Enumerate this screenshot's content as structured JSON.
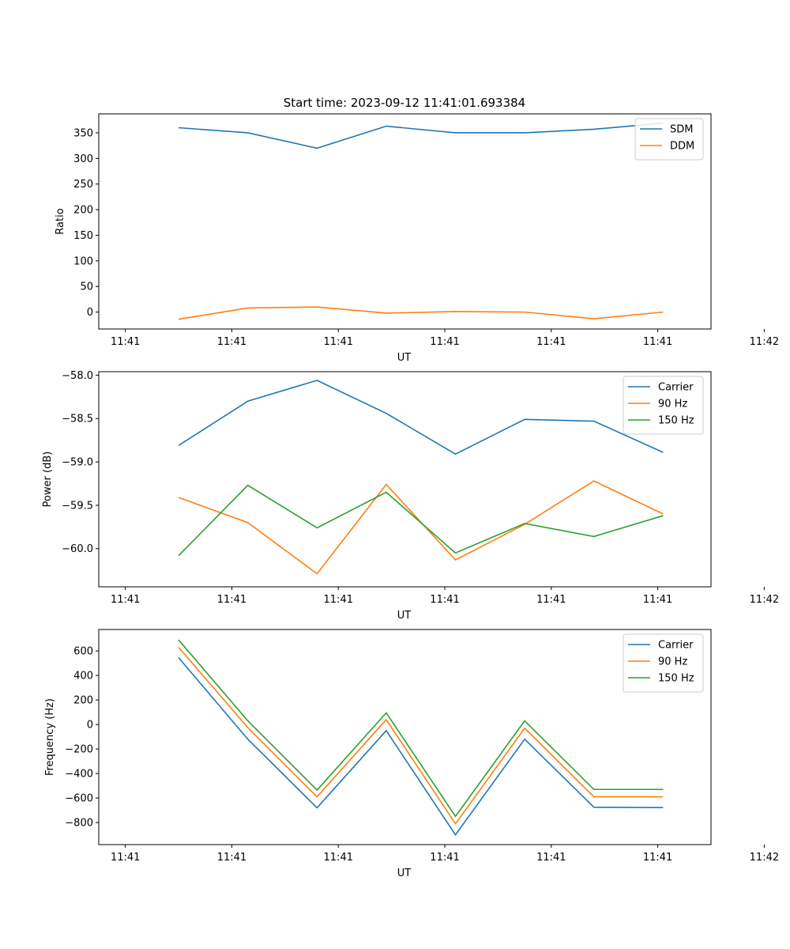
{
  "figure_title": "Start time: 2023-09-12 11:41:01.693384",
  "chart_data": [
    {
      "type": "line",
      "title": "Start time: 2023-09-12 11:41:01.693384",
      "xlabel": "UT",
      "ylabel": "Ratio",
      "xlim": [
        -0.5,
        11.0
      ],
      "ylim": [
        -33,
        387
      ],
      "xticks": [
        0,
        2,
        4,
        6,
        8,
        10,
        12
      ],
      "xtick_labels": [
        "11:41",
        "11:41",
        "11:41",
        "11:41",
        "11:41",
        "11:41",
        "11:42"
      ],
      "yticks": [
        0,
        50,
        100,
        150,
        200,
        250,
        300,
        350
      ],
      "ytick_labels": [
        "0",
        "50",
        "100",
        "150",
        "200",
        "250",
        "300",
        "350"
      ],
      "legend_position": "top-right",
      "x": [
        1,
        2.3,
        3.6,
        4.9,
        6.2,
        7.5,
        8.8,
        10.1
      ],
      "series": [
        {
          "name": "SDM",
          "color": "#1f77b4",
          "values": [
            360,
            350,
            320,
            363,
            350,
            350,
            357,
            369
          ]
        },
        {
          "name": "DDM",
          "color": "#ff7f0e",
          "values": [
            -14,
            8,
            10,
            -2,
            1,
            0,
            -13,
            0
          ]
        }
      ]
    },
    {
      "type": "line",
      "title": "",
      "xlabel": "UT",
      "ylabel": "Power (dB)",
      "xlim": [
        -0.5,
        11.0
      ],
      "ylim": [
        -60.44,
        -57.96
      ],
      "xticks": [
        0,
        2,
        4,
        6,
        8,
        10,
        12
      ],
      "xtick_labels": [
        "11:41",
        "11:41",
        "11:41",
        "11:41",
        "11:41",
        "11:41",
        "11:42"
      ],
      "yticks": [
        -60.0,
        -59.5,
        -59.0,
        -58.5,
        -58.0
      ],
      "ytick_labels": [
        "−60.0",
        "−59.5",
        "−59.0",
        "−58.5",
        "−58.0"
      ],
      "legend_position": "top-right",
      "x": [
        1,
        2.3,
        3.6,
        4.9,
        6.2,
        7.5,
        8.8,
        10.1
      ],
      "series": [
        {
          "name": "Carrier",
          "color": "#1f77b4",
          "values": [
            -58.81,
            -58.3,
            -58.06,
            -58.44,
            -58.91,
            -58.51,
            -58.53,
            -58.89
          ]
        },
        {
          "name": "90 Hz",
          "color": "#ff7f0e",
          "values": [
            -59.41,
            -59.7,
            -60.29,
            -59.26,
            -60.13,
            -59.72,
            -59.22,
            -59.6
          ]
        },
        {
          "name": "150 Hz",
          "color": "#2ca02c",
          "values": [
            -60.08,
            -59.27,
            -59.76,
            -59.35,
            -60.05,
            -59.71,
            -59.86,
            -59.62
          ]
        }
      ]
    },
    {
      "type": "line",
      "title": "",
      "xlabel": "UT",
      "ylabel": "Frequency (Hz)",
      "xlim": [
        -0.5,
        11.0
      ],
      "ylim": [
        -980,
        775
      ],
      "xticks": [
        0,
        2,
        4,
        6,
        8,
        10,
        12
      ],
      "xtick_labels": [
        "11:41",
        "11:41",
        "11:41",
        "11:41",
        "11:41",
        "11:41",
        "11:42"
      ],
      "yticks": [
        -800,
        -600,
        -400,
        -200,
        0,
        200,
        400,
        600
      ],
      "ytick_labels": [
        "−800",
        "−600",
        "−400",
        "−200",
        "0",
        "200",
        "400",
        "600"
      ],
      "legend_position": "top-right",
      "x": [
        1,
        2.3,
        3.6,
        4.9,
        6.2,
        7.5,
        8.8,
        10.1
      ],
      "series": [
        {
          "name": "Carrier",
          "color": "#1f77b4",
          "values": [
            545,
            -120,
            -680,
            -50,
            -900,
            -120,
            -675,
            -678
          ]
        },
        {
          "name": "90 Hz",
          "color": "#ff7f0e",
          "values": [
            630,
            -25,
            -590,
            40,
            -810,
            -30,
            -590,
            -590
          ]
        },
        {
          "name": "150 Hz",
          "color": "#2ca02c",
          "values": [
            690,
            30,
            -535,
            95,
            -750,
            30,
            -530,
            -530
          ]
        }
      ]
    }
  ]
}
